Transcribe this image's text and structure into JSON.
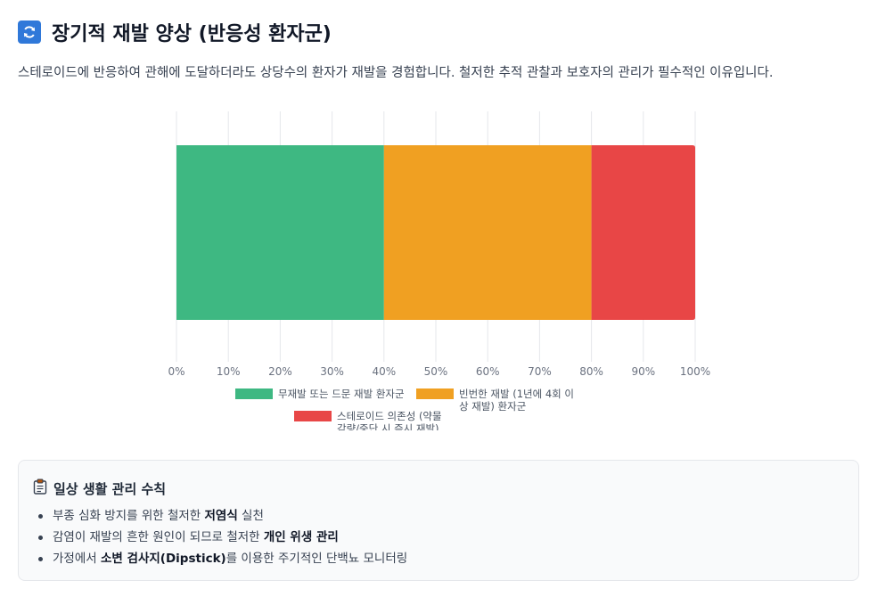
{
  "header": {
    "title": "장기적 재발 양상 (반응성 환자군)",
    "subtitle": "스테로이드에 반응하여 관해에 도달하더라도 상당수의 환자가 재발을 경험합니다. 철저한 추적 관찰과 보호자의 관리가 필수적인 이유입니다.",
    "icon": "refresh-icon"
  },
  "chart_data": {
    "type": "bar",
    "orientation": "horizontal",
    "stacked": true,
    "categories": [
      ""
    ],
    "series": [
      {
        "name": "무재발 또는 드문 재발 환자군",
        "values": [
          40
        ],
        "color": "#3eb882"
      },
      {
        "name": "빈번한 재발 (1년에 4회 이상 재발) 환자군",
        "values": [
          40
        ],
        "color": "#f0a022"
      },
      {
        "name": "스테로이드 의존성 (약물 감량/중단 시 즉시 재발)",
        "values": [
          20
        ],
        "color": "#e84646"
      }
    ],
    "xlim": [
      0,
      100
    ],
    "xticks": [
      "0%",
      "10%",
      "20%",
      "30%",
      "40%",
      "50%",
      "60%",
      "70%",
      "80%",
      "90%",
      "100%"
    ],
    "grid": true,
    "legend_position": "bottom"
  },
  "tips": {
    "icon": "clipboard-icon",
    "title": "일상 생활 관리 수칙",
    "items": [
      {
        "before": "부종 심화 방지를 위한 철저한 ",
        "bold": "저염식",
        "after": " 실천"
      },
      {
        "before": "감염이 재발의 흔한 원인이 되므로 철저한 ",
        "bold": "개인 위생 관리",
        "after": ""
      },
      {
        "before": "가정에서 ",
        "bold": "소변 검사지(Dipstick)",
        "after": "를 이용한 주기적인 단백뇨 모니터링"
      }
    ]
  }
}
